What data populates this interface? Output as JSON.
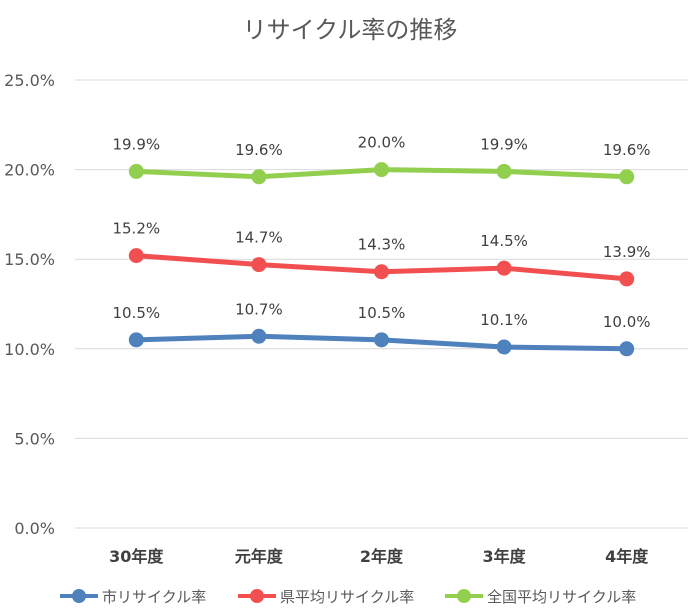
{
  "chart_data": {
    "type": "line",
    "title": "リサイクル率の推移",
    "categories": [
      "30年度",
      "元年度",
      "2年度",
      "3年度",
      "4年度"
    ],
    "yticks": [
      "0.0%",
      "5.0%",
      "10.0%",
      "15.0%",
      "20.0%",
      "25.0%"
    ],
    "ylim": [
      0,
      25
    ],
    "grid": true,
    "legend_position": "bottom",
    "series": [
      {
        "name": "市リサイクル率",
        "color": "#4F81BD",
        "values": [
          10.5,
          10.7,
          10.5,
          10.1,
          10.0
        ],
        "labels": [
          "10.5%",
          "10.7%",
          "10.5%",
          "10.1%",
          "10.0%"
        ]
      },
      {
        "name": "県平均リサイクル率",
        "color": "#F25050",
        "values": [
          15.2,
          14.7,
          14.3,
          14.5,
          13.9
        ],
        "labels": [
          "15.2%",
          "14.7%",
          "14.3%",
          "14.5%",
          "13.9%"
        ]
      },
      {
        "name": "全国平均リサイクル率",
        "color": "#92CF4F",
        "values": [
          19.9,
          19.6,
          20.0,
          19.9,
          19.6
        ],
        "labels": [
          "19.9%",
          "19.6%",
          "20.0%",
          "19.9%",
          "19.6%"
        ]
      }
    ]
  }
}
